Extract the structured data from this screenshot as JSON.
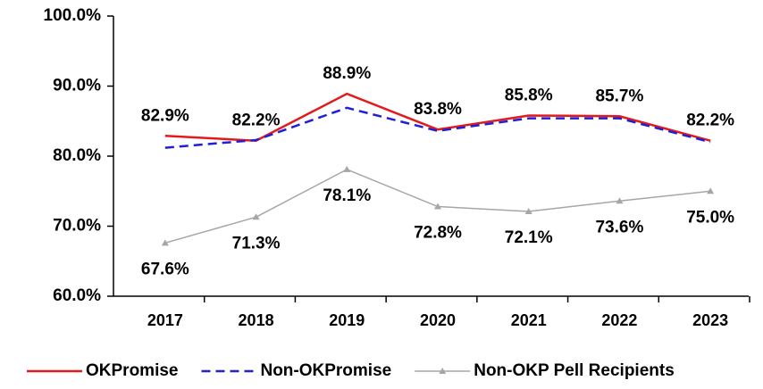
{
  "chart_data": {
    "type": "line",
    "categories": [
      "2017",
      "2018",
      "2019",
      "2020",
      "2021",
      "2022",
      "2023"
    ],
    "series": [
      {
        "name": "OKPromise",
        "color": "#e31a1c",
        "values": [
          82.9,
          82.2,
          88.9,
          83.8,
          85.8,
          85.7,
          82.2
        ],
        "value_labels": [
          "82.9%",
          "82.2%",
          "88.9%",
          "83.8%",
          "85.8%",
          "85.7%",
          "82.2%"
        ]
      },
      {
        "name": "Non-OKPromise",
        "color": "#1f1fd6",
        "values": [
          81.2,
          82.3,
          86.9,
          83.6,
          85.4,
          85.4,
          82.0
        ]
      },
      {
        "name": "Non-OKP Pell Recipients",
        "color": "#a6a6a6",
        "values": [
          67.6,
          71.3,
          78.1,
          72.8,
          72.1,
          73.6,
          75.0
        ],
        "value_labels": [
          "67.6%",
          "71.3%",
          "78.1%",
          "72.8%",
          "72.1%",
          "73.6%",
          "75.0%"
        ]
      }
    ],
    "ylim": [
      60,
      100
    ],
    "yticks": [
      {
        "value": 60,
        "label": "60.0%"
      },
      {
        "value": 70,
        "label": "70.0%"
      },
      {
        "value": 80,
        "label": "80.0%"
      },
      {
        "value": 90,
        "label": "90.0%"
      },
      {
        "value": 100,
        "label": "100.0%"
      }
    ],
    "legend": "bottom"
  }
}
